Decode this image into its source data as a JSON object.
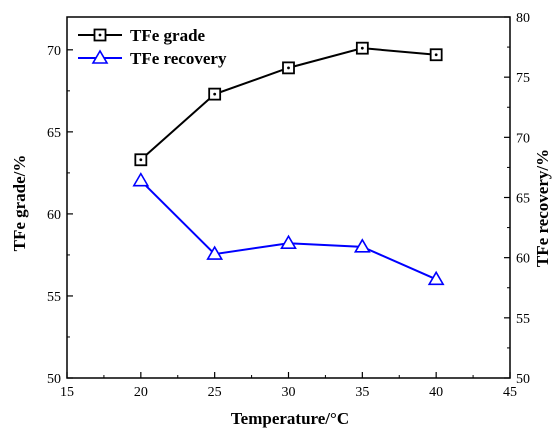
{
  "chart_data": {
    "type": "line",
    "x": [
      20,
      25,
      30,
      35,
      40
    ],
    "xlabel": "Temperature/°C",
    "xlim": [
      15,
      45
    ],
    "xticks": [
      15,
      20,
      25,
      30,
      35,
      40,
      45
    ],
    "ylabel_left": "TFe grade/%",
    "ylim_left": [
      50,
      72
    ],
    "yticks_left": [
      50,
      55,
      60,
      65,
      70
    ],
    "ylabel_right": "TFe recovery/%",
    "ylim_right": [
      50,
      80
    ],
    "yticks_right": [
      50,
      55,
      60,
      65,
      70,
      75,
      80
    ],
    "grid": false,
    "legend_position": "top-left",
    "series": [
      {
        "name": "TFe grade",
        "axis": "left",
        "color": "#000000",
        "marker": "square-dot",
        "values": [
          63.3,
          67.3,
          68.9,
          70.1,
          69.7
        ]
      },
      {
        "name": "TFe recovery",
        "axis": "right",
        "color": "#0000ff",
        "marker": "triangle-open",
        "values": [
          66.4,
          60.3,
          61.2,
          60.9,
          58.2
        ]
      }
    ]
  }
}
